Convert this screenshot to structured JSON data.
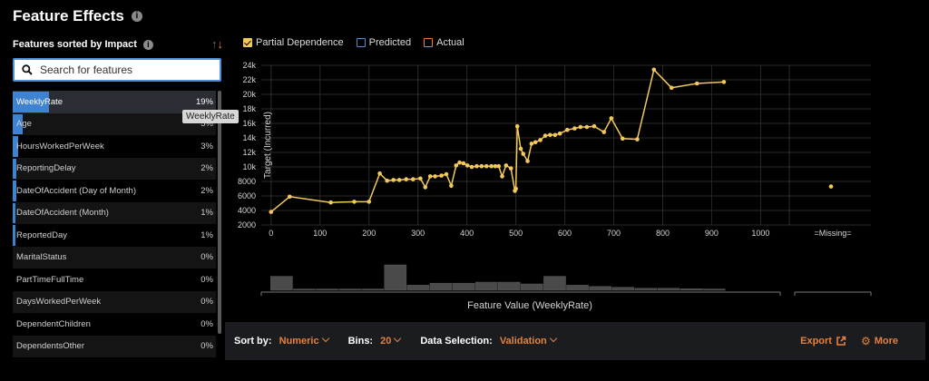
{
  "title": "Feature Effects",
  "features_header": "Features sorted by Impact",
  "search": {
    "placeholder": "Search for features"
  },
  "features": [
    {
      "name": "WeeklyRate",
      "impact": "19%",
      "share": 0.19
    },
    {
      "name": "Age",
      "impact": "5%",
      "share": 0.05
    },
    {
      "name": "HoursWorkedPerWeek",
      "impact": "3%",
      "share": 0.03
    },
    {
      "name": "ReportingDelay",
      "impact": "2%",
      "share": 0.02
    },
    {
      "name": "DateOfAccident (Day of Month)",
      "impact": "2%",
      "share": 0.02
    },
    {
      "name": "DateOfAccident (Month)",
      "impact": "1%",
      "share": 0.01
    },
    {
      "name": "ReportedDay",
      "impact": "1%",
      "share": 0.01
    },
    {
      "name": "MaritalStatus",
      "impact": "0%",
      "share": 0
    },
    {
      "name": "PartTimeFullTime",
      "impact": "0%",
      "share": 0
    },
    {
      "name": "DaysWorkedPerWeek",
      "impact": "0%",
      "share": 0
    },
    {
      "name": "DependentChildren",
      "impact": "0%",
      "share": 0
    },
    {
      "name": "DependentsOther",
      "impact": "0%",
      "share": 0
    }
  ],
  "tooltip": "WeeklyRate",
  "legend": {
    "partial": "Partial Dependence",
    "predicted": "Predicted",
    "actual": "Actual"
  },
  "colors": {
    "partial": "#f2c95a",
    "predicted": "#4a90d9",
    "actual": "#e5813a",
    "histogram": "#4a4a4a",
    "accent": "#e5813a"
  },
  "chart_data": {
    "type": "line",
    "ylabel": "Target (Incurred)",
    "xlabel": "Feature Value (WeeklyRate)",
    "ylim": [
      2000,
      24000
    ],
    "yticks": [
      "2000",
      "4000",
      "6000",
      "8000",
      "10k",
      "12k",
      "14k",
      "16k",
      "18k",
      "20k",
      "22k",
      "24k"
    ],
    "xlim": [
      -20,
      1040
    ],
    "xticks": [
      "0",
      "100",
      "200",
      "300",
      "400",
      "500",
      "600",
      "700",
      "800",
      "900",
      "1000"
    ],
    "missing_label": "=Missing=",
    "missing_value": 7300,
    "partial_dependence": [
      [
        0,
        3800
      ],
      [
        38,
        5900
      ],
      [
        122,
        5100
      ],
      [
        170,
        5200
      ],
      [
        200,
        5200
      ],
      [
        222,
        9100
      ],
      [
        237,
        8100
      ],
      [
        250,
        8200
      ],
      [
        262,
        8200
      ],
      [
        276,
        8300
      ],
      [
        290,
        8300
      ],
      [
        305,
        8400
      ],
      [
        315,
        7200
      ],
      [
        325,
        8700
      ],
      [
        335,
        8700
      ],
      [
        348,
        8800
      ],
      [
        358,
        9000
      ],
      [
        368,
        7400
      ],
      [
        378,
        10200
      ],
      [
        385,
        10600
      ],
      [
        393,
        10500
      ],
      [
        401,
        10200
      ],
      [
        410,
        10000
      ],
      [
        420,
        10100
      ],
      [
        430,
        10100
      ],
      [
        440,
        10100
      ],
      [
        450,
        10100
      ],
      [
        458,
        10100
      ],
      [
        465,
        10100
      ],
      [
        472,
        8700
      ],
      [
        480,
        10200
      ],
      [
        490,
        9800
      ],
      [
        498,
        6700
      ],
      [
        500,
        7000
      ],
      [
        503,
        15600
      ],
      [
        510,
        12500
      ],
      [
        515,
        11800
      ],
      [
        524,
        10800
      ],
      [
        532,
        13200
      ],
      [
        540,
        13400
      ],
      [
        550,
        13700
      ],
      [
        560,
        14300
      ],
      [
        570,
        14400
      ],
      [
        580,
        14400
      ],
      [
        590,
        14600
      ],
      [
        605,
        15100
      ],
      [
        620,
        15300
      ],
      [
        632,
        15500
      ],
      [
        645,
        15500
      ],
      [
        660,
        15600
      ],
      [
        680,
        14800
      ],
      [
        695,
        16700
      ],
      [
        718,
        13900
      ],
      [
        748,
        13800
      ],
      [
        782,
        23400
      ],
      [
        818,
        20900
      ],
      [
        870,
        21500
      ],
      [
        925,
        21700
      ]
    ],
    "histogram": [
      0.55,
      0.05,
      0.05,
      0.05,
      0.05,
      1.0,
      0.2,
      0.28,
      0.28,
      0.32,
      0.32,
      0.25,
      0.55,
      0.2,
      0.15,
      0.12,
      0.08,
      0.08,
      0.06,
      0.05
    ]
  },
  "controls": {
    "sort_label": "Sort by:",
    "sort_value": "Numeric",
    "bins_label": "Bins:",
    "bins_value": "20",
    "data_label": "Data Selection:",
    "data_value": "Validation",
    "export": "Export",
    "more": "More"
  }
}
